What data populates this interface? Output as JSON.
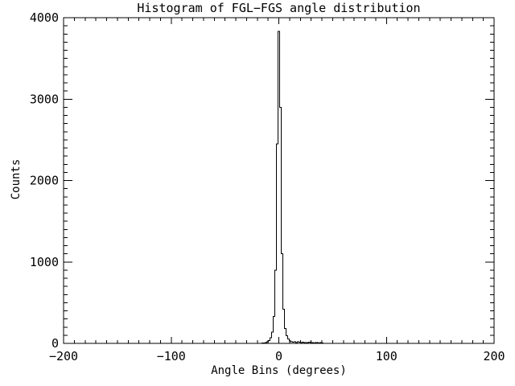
{
  "chart_data": {
    "type": "line",
    "style": "step-histogram",
    "title": "Histogram of FGL−FGS angle distribution",
    "xlabel": "Angle Bins (degrees)",
    "ylabel": "Counts",
    "xlim": [
      -200,
      200
    ],
    "ylim": [
      0,
      4000
    ],
    "x_major_ticks": [
      -200,
      -100,
      0,
      100,
      200
    ],
    "x_tick_labels": [
      "−200",
      "−100",
      "0",
      "100",
      "200"
    ],
    "x_minor_step": 10,
    "y_major_ticks": [
      0,
      1000,
      2000,
      3000,
      4000
    ],
    "y_tick_labels": [
      "0",
      "1000",
      "2000",
      "3000",
      "4000"
    ],
    "y_minor_step": 100,
    "grid": false,
    "legend": null,
    "line_color": "#000000",
    "background_color": "#ffffff",
    "peak": {
      "x": 0,
      "y": 3830
    },
    "bin_width": 1.5,
    "bin_centers": [
      -18,
      -16.5,
      -15,
      -13.5,
      -12,
      -10.5,
      -9,
      -7.5,
      -6,
      -4.5,
      -3,
      -1.5,
      0,
      1.5,
      3,
      4.5,
      6,
      7.5,
      9,
      10.5,
      12,
      13.5,
      15,
      16.5,
      18,
      19.5,
      21,
      22.5,
      24,
      25.5,
      27,
      28.5,
      30,
      31.5,
      33,
      34.5,
      36,
      37.5,
      39,
      40.5,
      42,
      43.5
    ],
    "counts": [
      0,
      2,
      4,
      6,
      10,
      18,
      35,
      70,
      140,
      330,
      900,
      2450,
      3830,
      2900,
      1100,
      420,
      185,
      95,
      55,
      32,
      22,
      15,
      18,
      12,
      20,
      14,
      10,
      16,
      8,
      12,
      10,
      14,
      8,
      10,
      6,
      8,
      10,
      6,
      8,
      4,
      2,
      0
    ]
  }
}
